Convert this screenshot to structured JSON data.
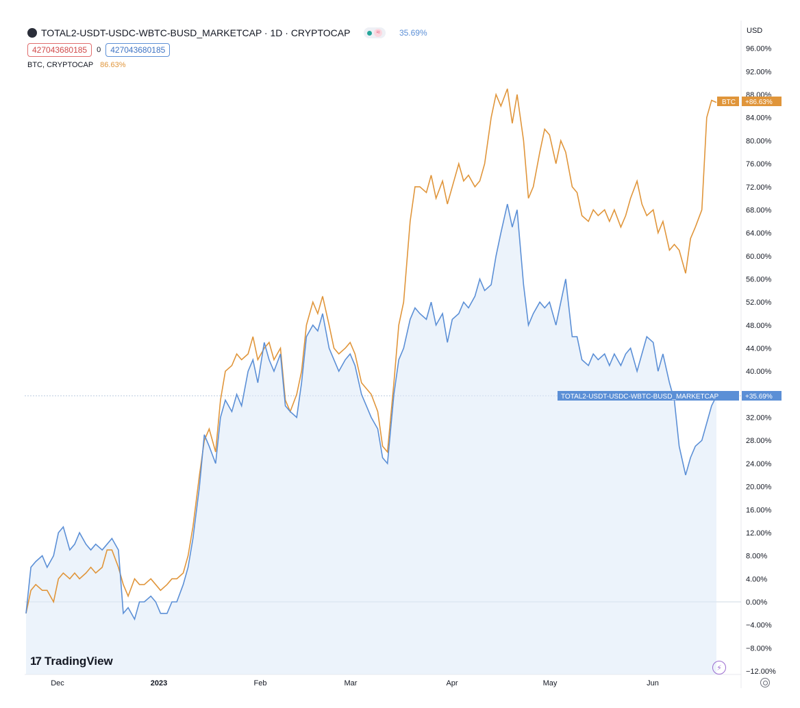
{
  "header": {
    "title": "TOTAL2-USDT-USDC-WBTC-BUSD_MARKETCAP · 1D · CRYPTOCAP",
    "status_value": "35.69%",
    "value_red": "427043680185",
    "value_zero": "0",
    "value_blue": "427043680185",
    "compare_symbol": "BTC, CRYPTOCAP",
    "compare_value": "86.63%"
  },
  "branding": {
    "logo_text": "TradingView",
    "logo_mark": "17"
  },
  "icons": {
    "status": "status-dot-icon",
    "bolt": "lightning-icon",
    "settings": "settings-gear-icon"
  },
  "colors": {
    "btc": "#e0953a",
    "total2": "#5b8fd6",
    "fill": "#dce9f7"
  },
  "chart_data": {
    "type": "line",
    "y_unit": "USD",
    "y_axis_ticks": [
      "96.00%",
      "92.00%",
      "88.00%",
      "84.00%",
      "80.00%",
      "76.00%",
      "72.00%",
      "68.00%",
      "64.00%",
      "60.00%",
      "56.00%",
      "52.00%",
      "48.00%",
      "44.00%",
      "40.00%",
      "36.00%",
      "32.00%",
      "28.00%",
      "24.00%",
      "20.00%",
      "16.00%",
      "12.00%",
      "8.00%",
      "4.00%",
      "0.00%",
      "−4.00%",
      "−8.00%",
      "−12.00%"
    ],
    "x_axis_ticks": [
      "Dec",
      "2023",
      "Feb",
      "Mar",
      "Apr",
      "May",
      "Jun"
    ],
    "ylim": [
      -12,
      98
    ],
    "scale": "percent",
    "grid": false,
    "series": [
      {
        "name": "BTC",
        "label": "BTC",
        "last_value_label": "+86.63%",
        "color": "#e0953a",
        "points": [
          [
            0,
            -2
          ],
          [
            3,
            2
          ],
          [
            6,
            3
          ],
          [
            10,
            2
          ],
          [
            13,
            2
          ],
          [
            17,
            0
          ],
          [
            20,
            4
          ],
          [
            23,
            5
          ],
          [
            27,
            4
          ],
          [
            30,
            5
          ],
          [
            33,
            4
          ],
          [
            37,
            5
          ],
          [
            40,
            6
          ],
          [
            43,
            5
          ],
          [
            47,
            6
          ],
          [
            50,
            9
          ],
          [
            53,
            9
          ],
          [
            57,
            6
          ],
          [
            60,
            3
          ],
          [
            63,
            1
          ],
          [
            67,
            4
          ],
          [
            70,
            3
          ],
          [
            73,
            3
          ],
          [
            77,
            4
          ],
          [
            80,
            3
          ],
          [
            83,
            2
          ],
          [
            87,
            3
          ],
          [
            90,
            4
          ],
          [
            93,
            4
          ],
          [
            97,
            5
          ],
          [
            100,
            8
          ],
          [
            103,
            13
          ],
          [
            107,
            22
          ],
          [
            110,
            28
          ],
          [
            113,
            30
          ],
          [
            117,
            26
          ],
          [
            120,
            35
          ],
          [
            123,
            40
          ],
          [
            127,
            41
          ],
          [
            130,
            43
          ],
          [
            133,
            42
          ],
          [
            137,
            43
          ],
          [
            140,
            46
          ],
          [
            143,
            42
          ],
          [
            147,
            44
          ],
          [
            150,
            45
          ],
          [
            153,
            42
          ],
          [
            157,
            44
          ],
          [
            160,
            35
          ],
          [
            163,
            33
          ],
          [
            167,
            36
          ],
          [
            170,
            40
          ],
          [
            173,
            48
          ],
          [
            177,
            52
          ],
          [
            180,
            50
          ],
          [
            183,
            53
          ],
          [
            187,
            48
          ],
          [
            190,
            44
          ],
          [
            193,
            43
          ],
          [
            197,
            44
          ],
          [
            200,
            45
          ],
          [
            203,
            43
          ],
          [
            207,
            38
          ],
          [
            210,
            37
          ],
          [
            213,
            36
          ],
          [
            217,
            33
          ],
          [
            220,
            27
          ],
          [
            223,
            26
          ],
          [
            227,
            38
          ],
          [
            230,
            48
          ],
          [
            233,
            52
          ],
          [
            237,
            66
          ],
          [
            240,
            72
          ],
          [
            243,
            72
          ],
          [
            247,
            71
          ],
          [
            250,
            74
          ],
          [
            253,
            70
          ],
          [
            257,
            73
          ],
          [
            260,
            69
          ],
          [
            263,
            72
          ],
          [
            267,
            76
          ],
          [
            270,
            73
          ],
          [
            273,
            74
          ],
          [
            277,
            72
          ],
          [
            280,
            73
          ],
          [
            283,
            76
          ],
          [
            287,
            84
          ],
          [
            290,
            88
          ],
          [
            293,
            86
          ],
          [
            297,
            89
          ],
          [
            300,
            83
          ],
          [
            303,
            88
          ],
          [
            307,
            80
          ],
          [
            310,
            70
          ],
          [
            313,
            72
          ],
          [
            317,
            78
          ],
          [
            320,
            82
          ],
          [
            323,
            81
          ],
          [
            327,
            76
          ],
          [
            330,
            80
          ],
          [
            333,
            78
          ],
          [
            337,
            72
          ],
          [
            340,
            71
          ],
          [
            343,
            67
          ],
          [
            347,
            66
          ],
          [
            350,
            68
          ],
          [
            353,
            67
          ],
          [
            357,
            68
          ],
          [
            360,
            66
          ],
          [
            363,
            68
          ],
          [
            367,
            65
          ],
          [
            370,
            67
          ],
          [
            373,
            70
          ],
          [
            377,
            73
          ],
          [
            380,
            69
          ],
          [
            383,
            67
          ],
          [
            387,
            68
          ],
          [
            390,
            64
          ],
          [
            393,
            66
          ],
          [
            397,
            61
          ],
          [
            400,
            62
          ],
          [
            403,
            61
          ],
          [
            407,
            57
          ],
          [
            410,
            63
          ],
          [
            413,
            65
          ],
          [
            417,
            68
          ],
          [
            420,
            84
          ],
          [
            423,
            87
          ],
          [
            426,
            86.63
          ]
        ]
      },
      {
        "name": "TOTAL2-USDT-USDC-WBTC-BUSD_MARKETCAP",
        "label": "TOTAL2-USDT-USDC-WBTC-BUSD_MARKETCAP",
        "last_value_label": "+35.69%",
        "color": "#5b8fd6",
        "points": [
          [
            0,
            -2
          ],
          [
            3,
            6
          ],
          [
            6,
            7
          ],
          [
            10,
            8
          ],
          [
            13,
            6
          ],
          [
            17,
            8
          ],
          [
            20,
            12
          ],
          [
            23,
            13
          ],
          [
            27,
            9
          ],
          [
            30,
            10
          ],
          [
            33,
            12
          ],
          [
            37,
            10
          ],
          [
            40,
            9
          ],
          [
            43,
            10
          ],
          [
            47,
            9
          ],
          [
            50,
            10
          ],
          [
            53,
            11
          ],
          [
            57,
            9
          ],
          [
            60,
            -2
          ],
          [
            63,
            -1
          ],
          [
            67,
            -3
          ],
          [
            70,
            0
          ],
          [
            73,
            0
          ],
          [
            77,
            1
          ],
          [
            80,
            0
          ],
          [
            83,
            -2
          ],
          [
            87,
            -2
          ],
          [
            90,
            0
          ],
          [
            93,
            0
          ],
          [
            97,
            3
          ],
          [
            100,
            6
          ],
          [
            103,
            11
          ],
          [
            107,
            20
          ],
          [
            110,
            29
          ],
          [
            113,
            27
          ],
          [
            117,
            24
          ],
          [
            120,
            32
          ],
          [
            123,
            35
          ],
          [
            127,
            33
          ],
          [
            130,
            36
          ],
          [
            133,
            34
          ],
          [
            137,
            40
          ],
          [
            140,
            42
          ],
          [
            143,
            38
          ],
          [
            147,
            45
          ],
          [
            150,
            42
          ],
          [
            153,
            40
          ],
          [
            157,
            43
          ],
          [
            160,
            34
          ],
          [
            163,
            33
          ],
          [
            167,
            32
          ],
          [
            170,
            38
          ],
          [
            173,
            46
          ],
          [
            177,
            48
          ],
          [
            180,
            47
          ],
          [
            183,
            50
          ],
          [
            187,
            44
          ],
          [
            190,
            42
          ],
          [
            193,
            40
          ],
          [
            197,
            42
          ],
          [
            200,
            43
          ],
          [
            203,
            41
          ],
          [
            207,
            36
          ],
          [
            210,
            34
          ],
          [
            213,
            32
          ],
          [
            217,
            30
          ],
          [
            220,
            25
          ],
          [
            223,
            24
          ],
          [
            227,
            36
          ],
          [
            230,
            42
          ],
          [
            233,
            44
          ],
          [
            237,
            49
          ],
          [
            240,
            51
          ],
          [
            243,
            50
          ],
          [
            247,
            49
          ],
          [
            250,
            52
          ],
          [
            253,
            48
          ],
          [
            257,
            50
          ],
          [
            260,
            45
          ],
          [
            263,
            49
          ],
          [
            267,
            50
          ],
          [
            270,
            52
          ],
          [
            273,
            51
          ],
          [
            277,
            53
          ],
          [
            280,
            56
          ],
          [
            283,
            54
          ],
          [
            287,
            55
          ],
          [
            290,
            60
          ],
          [
            293,
            64
          ],
          [
            297,
            69
          ],
          [
            300,
            65
          ],
          [
            303,
            68
          ],
          [
            307,
            55
          ],
          [
            310,
            48
          ],
          [
            313,
            50
          ],
          [
            317,
            52
          ],
          [
            320,
            51
          ],
          [
            323,
            52
          ],
          [
            327,
            48
          ],
          [
            330,
            52
          ],
          [
            333,
            56
          ],
          [
            337,
            46
          ],
          [
            340,
            46
          ],
          [
            343,
            42
          ],
          [
            347,
            41
          ],
          [
            350,
            43
          ],
          [
            353,
            42
          ],
          [
            357,
            43
          ],
          [
            360,
            41
          ],
          [
            363,
            43
          ],
          [
            367,
            41
          ],
          [
            370,
            43
          ],
          [
            373,
            44
          ],
          [
            377,
            40
          ],
          [
            380,
            43
          ],
          [
            383,
            46
          ],
          [
            387,
            45
          ],
          [
            390,
            40
          ],
          [
            393,
            43
          ],
          [
            397,
            38
          ],
          [
            400,
            35
          ],
          [
            403,
            27
          ],
          [
            407,
            22
          ],
          [
            410,
            25
          ],
          [
            413,
            27
          ],
          [
            417,
            28
          ],
          [
            420,
            31
          ],
          [
            423,
            34
          ],
          [
            426,
            35.69
          ]
        ]
      }
    ]
  }
}
